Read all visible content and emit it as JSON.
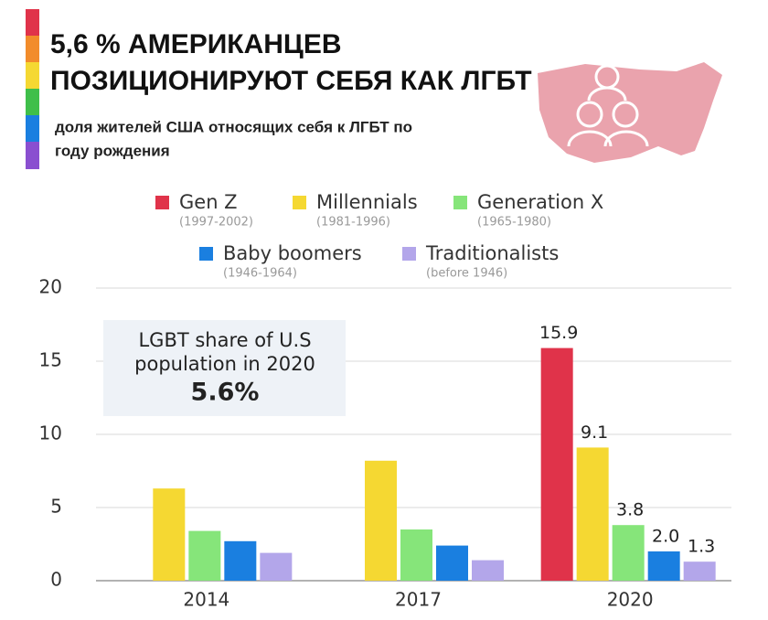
{
  "chart_data": {
    "type": "bar",
    "title": [
      "5,6 % АМЕРИКАНЦЕВ",
      "ПОЗИЦИОНИРУЮТ СЕБЯ КАК ЛГБТ"
    ],
    "subtitle": [
      "доля жителей США относящих себя к ЛГБТ по",
      "году рождения"
    ],
    "annotation": [
      "LGBT share of U.S",
      "population in 2020",
      "5.6%"
    ],
    "categories": [
      "2014",
      "2017",
      "2020"
    ],
    "series": [
      {
        "name": "Gen Z",
        "period": "(1997-2002)",
        "color": "#e0334a",
        "values": [
          null,
          null,
          15.9
        ],
        "value_labels": [
          null,
          null,
          "15.9"
        ]
      },
      {
        "name": "Millennials",
        "period": "(1981-1996)",
        "color": "#f5d832",
        "values": [
          6.3,
          8.2,
          9.1
        ],
        "value_labels": [
          null,
          null,
          "9.1"
        ]
      },
      {
        "name": "Generation X",
        "period": "(1965-1980)",
        "color": "#86e57a",
        "values": [
          3.4,
          3.5,
          3.8
        ],
        "value_labels": [
          null,
          null,
          "3.8"
        ]
      },
      {
        "name": "Baby boomers",
        "period": "(1946-1964)",
        "color": "#1a7fe0",
        "values": [
          2.7,
          2.4,
          2.0
        ],
        "value_labels": [
          null,
          null,
          "2.0"
        ]
      },
      {
        "name": "Traditionalists",
        "period": "(before 1946)",
        "color": "#b3a6ea",
        "values": [
          1.9,
          1.4,
          1.3
        ],
        "value_labels": [
          null,
          null,
          "1.3"
        ]
      }
    ],
    "ylim": [
      0,
      20
    ],
    "yticks": [
      0,
      5,
      10,
      15,
      20
    ],
    "grid": true
  }
}
